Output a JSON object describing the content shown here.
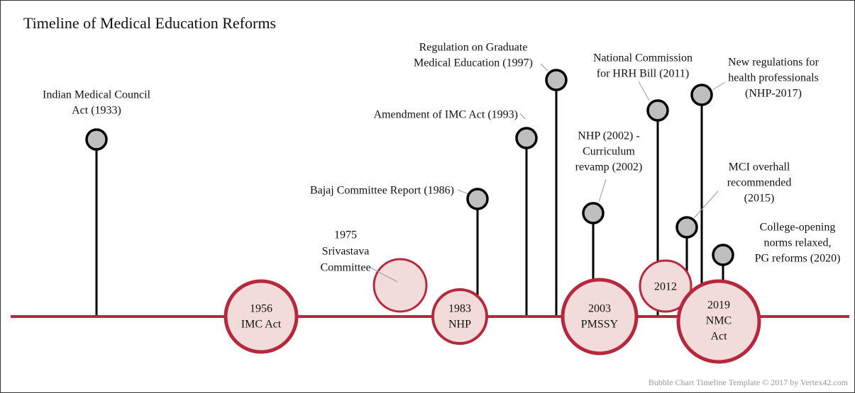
{
  "title": "Timeline of Medical Education Reforms",
  "events": [
    {
      "lines": [
        "Indian Medical Council",
        "Act (1933)"
      ]
    },
    {
      "lines": [
        "Bajaj Committee Report (1986)"
      ]
    },
    {
      "lines": [
        "Amendment of IMC Act (1993)"
      ]
    },
    {
      "lines": [
        "Regulation on Graduate",
        "Medical Education (1997)"
      ]
    },
    {
      "lines": [
        "NHP (2002) -",
        "Curriculum",
        "revamp (2002)"
      ]
    },
    {
      "lines": [
        "National Commission",
        "for HRH Bill  (2011)"
      ]
    },
    {
      "lines": [
        "MCI overhall",
        "recommended",
        "(2015)"
      ]
    },
    {
      "lines": [
        "New regulations for",
        "health professionals",
        "(NHP-2017)"
      ]
    },
    {
      "lines": [
        "College-opening",
        "norms relaxed,",
        "PG reforms (2020)"
      ]
    }
  ],
  "bubbles": [
    {
      "lines": [
        "1956",
        "IMC Act"
      ]
    },
    {
      "lines": [
        "1975",
        "Srivastava",
        "Committee"
      ]
    },
    {
      "lines": [
        "1983",
        "NHP"
      ]
    },
    {
      "lines": [
        "2003",
        "PMSSY"
      ]
    },
    {
      "lines": [
        "2012"
      ]
    },
    {
      "lines": [
        "2019",
        "NMC",
        "Act"
      ]
    }
  ],
  "footer": "Bubble Chart Timeline Template © 2017 by Vertex42.com"
}
